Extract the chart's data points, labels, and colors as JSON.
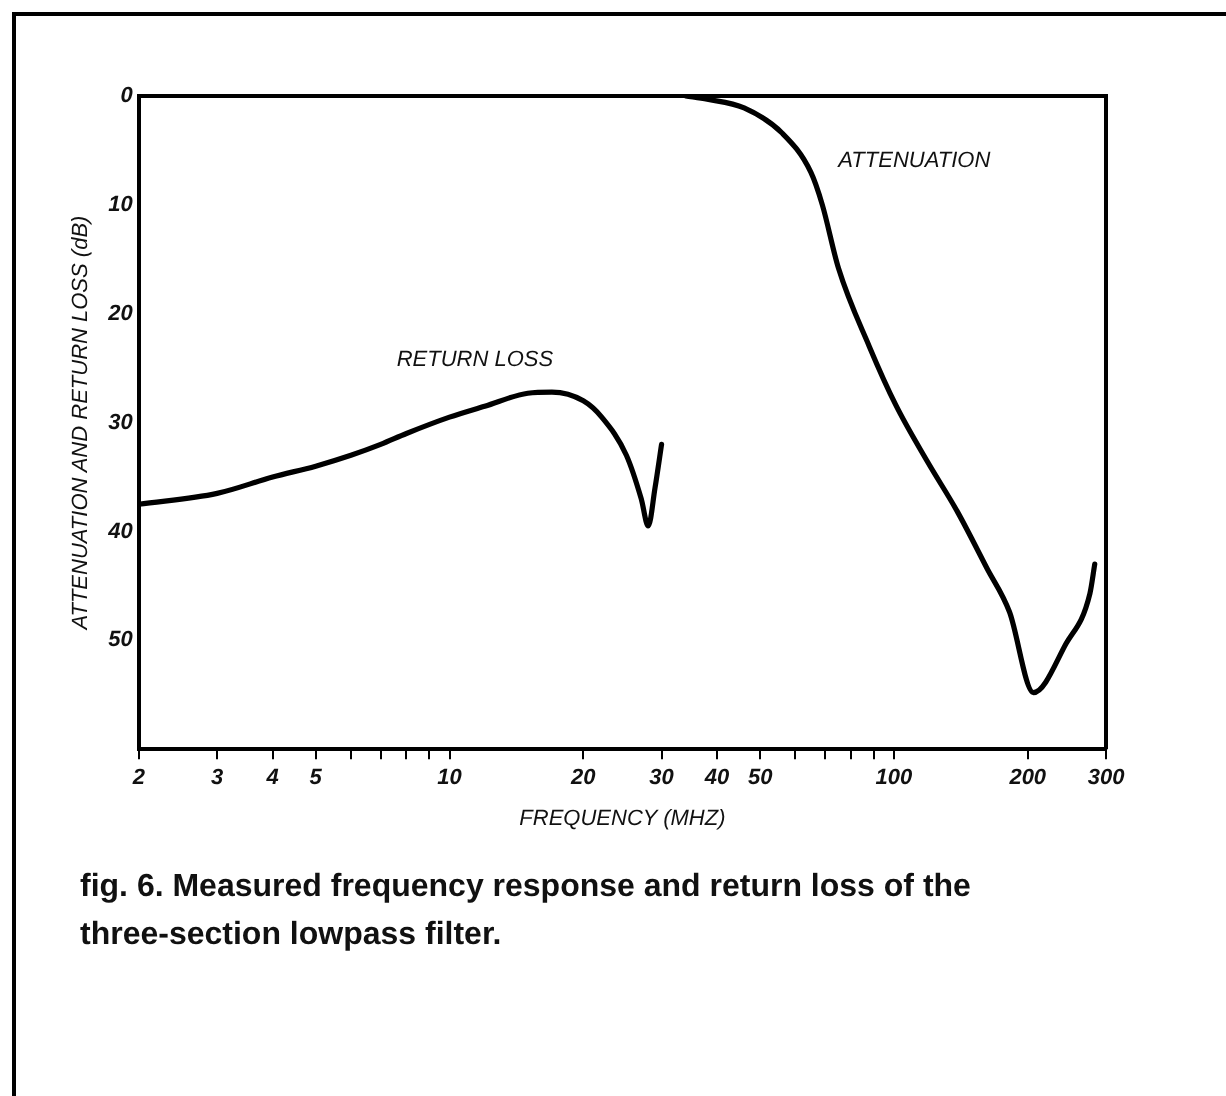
{
  "chart_data": {
    "type": "line",
    "title": "fig. 6. Measured frequency response and return loss of the three-section lowpass filter.",
    "xlabel": "FREQUENCY (MHZ)",
    "ylabel": "ATTENUATION AND RETURN LOSS (dB)",
    "log": "x",
    "xlim": [
      2,
      300
    ],
    "ylim": [
      60,
      0
    ],
    "xticks": [
      2,
      3,
      4,
      5,
      {
        "value": 6,
        "label": null
      },
      {
        "value": 7,
        "label": null
      },
      {
        "value": 8,
        "label": null
      },
      {
        "value": 9,
        "label": null
      },
      10,
      20,
      30,
      40,
      50,
      {
        "value": 60,
        "label": null
      },
      {
        "value": 70,
        "label": null
      },
      {
        "value": 80,
        "label": null
      },
      {
        "value": 90,
        "label": null
      },
      100,
      200,
      300
    ],
    "yticks": [
      0,
      10,
      20,
      30,
      40,
      50
    ],
    "series": [
      {
        "name": "RETURN LOSS",
        "color": "#000000",
        "x": [
          2,
          3,
          4,
          5,
          6,
          7,
          8,
          10,
          12,
          15,
          17,
          20,
          22,
          25,
          27,
          28,
          29,
          30
        ],
        "values": [
          37.5,
          36.5,
          35,
          34,
          33,
          32,
          31,
          29.5,
          28.5,
          27.3,
          27.2,
          28,
          29.5,
          33,
          37,
          39.5,
          36,
          32
        ]
      },
      {
        "name": "ATTENUATION",
        "color": "#000000",
        "x": [
          34,
          38,
          46,
          56,
          65,
          69,
          75,
          88,
          101,
          119,
          139,
          162,
          182,
          206,
          244,
          276,
          283
        ],
        "values": [
          0,
          0.3,
          1.1,
          3.4,
          7,
          10,
          15.8,
          23,
          28.4,
          33.6,
          38.2,
          43.4,
          47.4,
          54.8,
          50.3,
          45.7,
          43
        ]
      }
    ],
    "legend": false,
    "marker": "none",
    "line_style": "solid"
  }
}
